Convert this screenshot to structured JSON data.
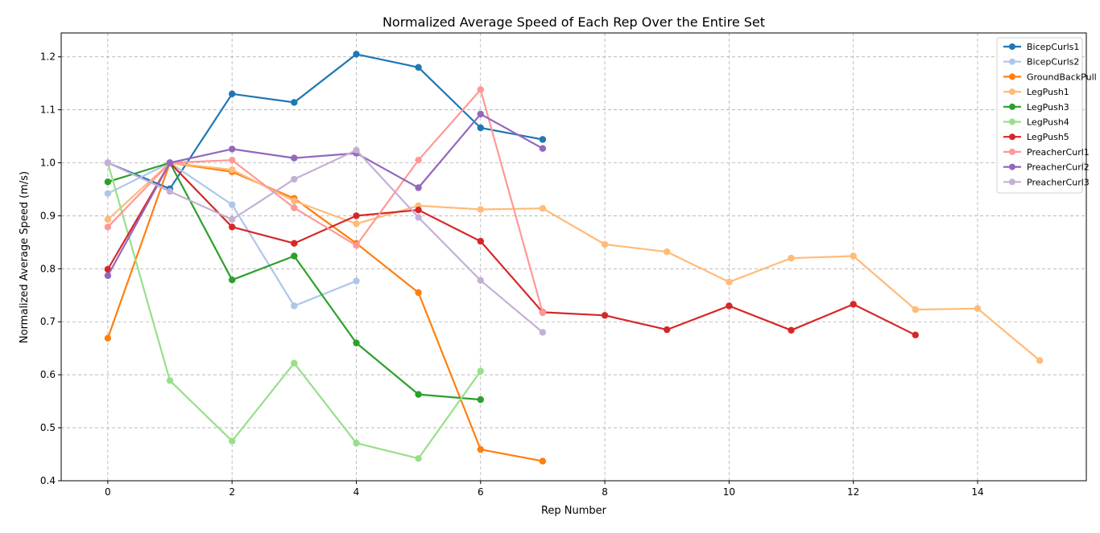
{
  "chart_data": {
    "type": "line",
    "title": "Normalized Average Speed of Each Rep Over the Entire Set",
    "xlabel": "Rep Number",
    "ylabel": "Normalized Average Speed (m/s)",
    "xlim": [
      -0.75,
      15.75
    ],
    "ylim": [
      0.4,
      1.245
    ],
    "xticks": [
      0,
      2,
      4,
      6,
      8,
      10,
      12,
      14
    ],
    "yticks": [
      0.4,
      0.5,
      0.6,
      0.7,
      0.8,
      0.9,
      1.0,
      1.1,
      1.2
    ],
    "grid": true,
    "legend_position": "top-right",
    "series": [
      {
        "name": "BicepCurls1",
        "color": "#1f77b4",
        "values": [
          1.0,
          0.951,
          1.13,
          1.114,
          1.205,
          1.18,
          1.066,
          1.044
        ]
      },
      {
        "name": "BicepCurls2",
        "color": "#aec7e8",
        "values": [
          0.942,
          1.0,
          0.921,
          0.73,
          0.777
        ]
      },
      {
        "name": "GroundBackPull",
        "color": "#ff7f0e",
        "values": [
          0.669,
          1.0,
          0.983,
          0.933,
          0.848,
          0.755,
          0.459,
          0.437
        ]
      },
      {
        "name": "LegPush1",
        "color": "#ffbb78",
        "values": [
          0.893,
          1.0,
          0.987,
          0.928,
          0.885,
          0.919,
          0.912,
          0.914,
          0.846,
          0.832,
          0.775,
          0.82,
          0.824,
          0.723,
          0.725,
          0.627
        ]
      },
      {
        "name": "LegPush3",
        "color": "#2ca02c",
        "values": [
          0.964,
          1.0,
          0.779,
          0.824,
          0.66,
          0.563,
          0.553
        ]
      },
      {
        "name": "LegPush4",
        "color": "#98df8a",
        "values": [
          1.0,
          0.589,
          0.475,
          0.622,
          0.471,
          0.442,
          0.607
        ]
      },
      {
        "name": "LegPush5",
        "color": "#d62728",
        "values": [
          0.799,
          1.0,
          0.879,
          0.848,
          0.9,
          0.911,
          0.852,
          0.718,
          0.712,
          0.685,
          0.73,
          0.684,
          0.733,
          0.675
        ]
      },
      {
        "name": "PreacherCurl1",
        "color": "#ff9896",
        "values": [
          0.879,
          1.0,
          1.005,
          0.915,
          0.844,
          1.005,
          1.138,
          0.717
        ]
      },
      {
        "name": "PreacherCurl2",
        "color": "#9467bd",
        "values": [
          0.787,
          1.0,
          1.026,
          1.009,
          1.018,
          0.953,
          1.092,
          1.027
        ]
      },
      {
        "name": "PreacherCurl3",
        "color": "#c5b0d5",
        "values": [
          1.0,
          0.946,
          0.893,
          0.969,
          1.024,
          0.897,
          0.778,
          0.68
        ]
      }
    ]
  }
}
